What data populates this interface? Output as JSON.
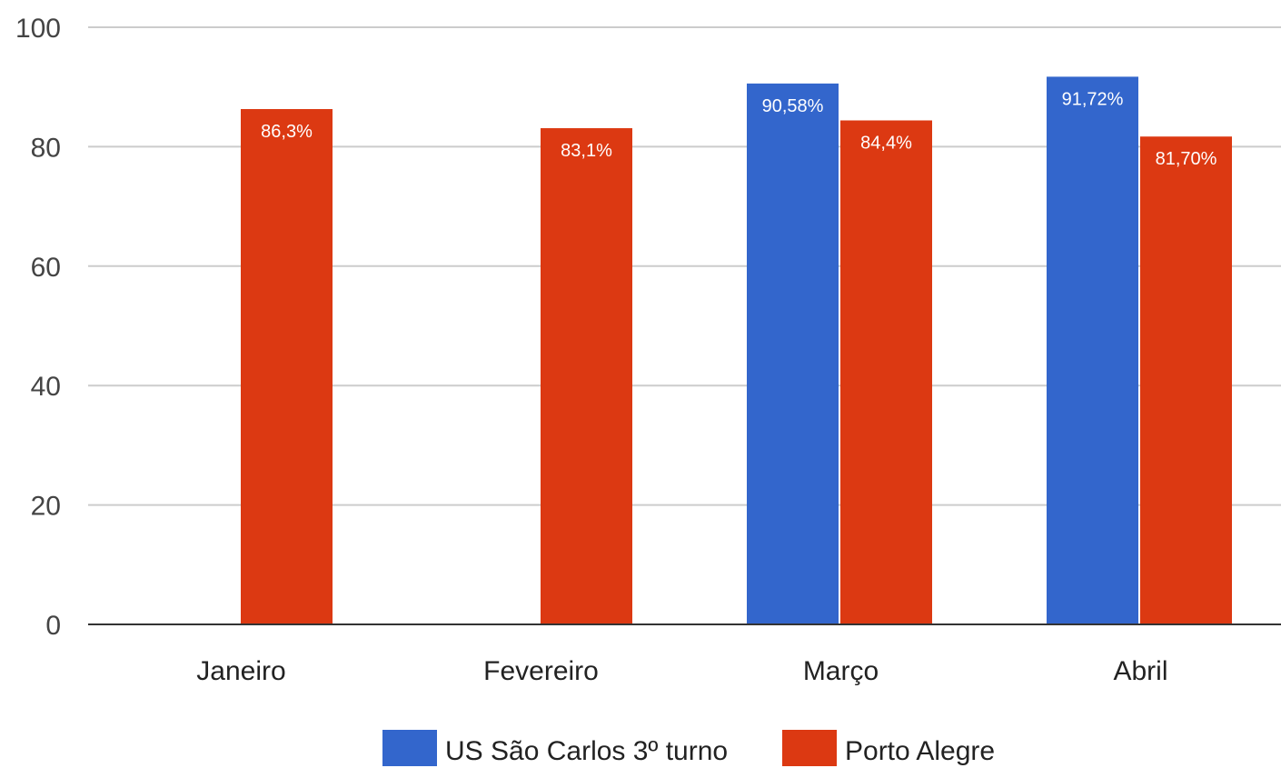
{
  "chart_data": {
    "type": "bar",
    "categories": [
      "Janeiro",
      "Fevereiro",
      "Março",
      "Abril"
    ],
    "series": [
      {
        "name": "US São Carlos 3º turno",
        "color": "#3366cc",
        "values": [
          null,
          null,
          90.58,
          91.72
        ],
        "labels": [
          "",
          "",
          "90,58%",
          "91,72%"
        ]
      },
      {
        "name": "Porto Alegre",
        "color": "#dc3912",
        "values": [
          86.3,
          83.1,
          84.4,
          81.7
        ],
        "labels": [
          "86,3%",
          "83,1%",
          "84,4%",
          "81,70%"
        ]
      }
    ],
    "ylim": [
      0,
      100
    ],
    "yticks": [
      0,
      20,
      40,
      60,
      80,
      100
    ],
    "ytick_labels": [
      "0",
      "20",
      "40",
      "60",
      "80",
      "100"
    ],
    "title": "",
    "xlabel": "",
    "ylabel": "",
    "grid": true,
    "legend_position": "bottom"
  }
}
